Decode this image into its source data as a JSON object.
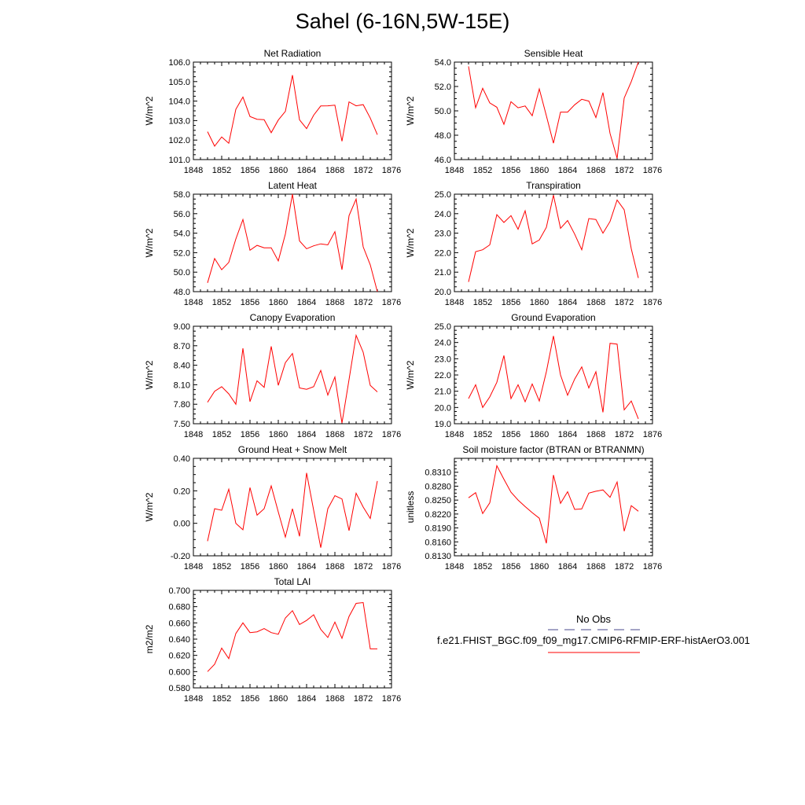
{
  "title": "Sahel (6-16N,5W-15E)",
  "series_color": "#ff0000",
  "legend": {
    "obs_label": "No Obs",
    "obs_color": "#4a4a8c",
    "model_label": "f.e21.FHIST_BGC.f09_f09_mg17.CMIP6-RFMIP-ERF-histAerO3.001",
    "model_color": "#ff0000"
  },
  "chart_data": [
    {
      "type": "line",
      "title": "Net Radiation",
      "ylabel": "W/m^2",
      "xlim": [
        1848,
        1876
      ],
      "x_ticks": [
        "1848",
        "1852",
        "1856",
        "1860",
        "1864",
        "1868",
        "1872",
        "1876"
      ],
      "ylim": [
        101.0,
        106.0
      ],
      "y_ticks": [
        "101.0",
        "102.0",
        "103.0",
        "104.0",
        "105.0",
        "106.0"
      ],
      "x": [
        1850,
        1851,
        1852,
        1853,
        1854,
        1855,
        1856,
        1857,
        1858,
        1859,
        1860,
        1861,
        1862,
        1863,
        1864,
        1865,
        1866,
        1867,
        1868,
        1869,
        1870,
        1871,
        1872,
        1873,
        1874
      ],
      "values": [
        102.43,
        101.69,
        102.16,
        101.84,
        103.58,
        104.21,
        103.21,
        103.07,
        103.05,
        102.38,
        103.03,
        103.47,
        105.33,
        103.04,
        102.59,
        103.28,
        103.75,
        103.76,
        103.79,
        101.94,
        103.96,
        103.76,
        103.82,
        103.13,
        102.28
      ]
    },
    {
      "type": "line",
      "title": "Sensible Heat",
      "ylabel": "W/m^2",
      "xlim": [
        1848,
        1876
      ],
      "x_ticks": [
        "1848",
        "1852",
        "1856",
        "1860",
        "1864",
        "1868",
        "1872",
        "1876"
      ],
      "ylim": [
        46.0,
        54.0
      ],
      "y_ticks": [
        "46.0",
        "48.0",
        "50.0",
        "52.0",
        "54.0"
      ],
      "x": [
        1850,
        1851,
        1852,
        1853,
        1854,
        1855,
        1856,
        1857,
        1858,
        1859,
        1860,
        1861,
        1862,
        1863,
        1864,
        1865,
        1866,
        1867,
        1868,
        1869,
        1870,
        1871,
        1872,
        1873,
        1874
      ],
      "values": [
        53.65,
        50.25,
        51.85,
        50.65,
        50.3,
        48.9,
        50.75,
        50.25,
        50.4,
        49.6,
        51.8,
        49.6,
        47.35,
        49.9,
        49.9,
        50.5,
        50.95,
        50.8,
        49.45,
        51.5,
        48.15,
        46.1,
        51.05,
        52.4,
        54.0
      ]
    },
    {
      "type": "line",
      "title": "Latent Heat",
      "ylabel": "W/m^2",
      "xlim": [
        1848,
        1876
      ],
      "x_ticks": [
        "1848",
        "1852",
        "1856",
        "1860",
        "1864",
        "1868",
        "1872",
        "1876"
      ],
      "ylim": [
        48.0,
        58.0
      ],
      "y_ticks": [
        "48.0",
        "50.0",
        "52.0",
        "54.0",
        "56.0",
        "58.0"
      ],
      "x": [
        1850,
        1851,
        1852,
        1853,
        1854,
        1855,
        1856,
        1857,
        1858,
        1859,
        1860,
        1861,
        1862,
        1863,
        1864,
        1865,
        1866,
        1867,
        1868,
        1869,
        1870,
        1871,
        1872,
        1873,
        1874
      ],
      "values": [
        48.9,
        51.4,
        50.25,
        51.0,
        53.4,
        55.4,
        52.25,
        52.75,
        52.5,
        52.5,
        51.15,
        53.9,
        58.0,
        53.2,
        52.4,
        52.7,
        52.9,
        52.8,
        54.15,
        50.25,
        55.8,
        57.5,
        52.6,
        50.75,
        48.0
      ]
    },
    {
      "type": "line",
      "title": "Transpiration",
      "ylabel": "W/m^2",
      "xlim": [
        1848,
        1876
      ],
      "x_ticks": [
        "1848",
        "1852",
        "1856",
        "1860",
        "1864",
        "1868",
        "1872",
        "1876"
      ],
      "ylim": [
        20.0,
        25.0
      ],
      "y_ticks": [
        "20.0",
        "21.0",
        "22.0",
        "23.0",
        "24.0",
        "25.0"
      ],
      "x": [
        1850,
        1851,
        1852,
        1853,
        1854,
        1855,
        1856,
        1857,
        1858,
        1859,
        1860,
        1861,
        1862,
        1863,
        1864,
        1865,
        1866,
        1867,
        1868,
        1869,
        1870,
        1871,
        1872,
        1873,
        1874
      ],
      "values": [
        20.5,
        22.05,
        22.15,
        22.4,
        23.95,
        23.55,
        23.9,
        23.2,
        24.15,
        22.45,
        22.65,
        23.3,
        24.95,
        23.25,
        23.65,
        22.95,
        22.15,
        23.75,
        23.7,
        23.0,
        23.6,
        24.7,
        24.2,
        22.2,
        20.7
      ]
    },
    {
      "type": "line",
      "title": "Canopy Evaporation",
      "ylabel": "W/m^2",
      "xlim": [
        1848,
        1876
      ],
      "x_ticks": [
        "1848",
        "1852",
        "1856",
        "1860",
        "1864",
        "1868",
        "1872",
        "1876"
      ],
      "ylim": [
        7.5,
        9.0
      ],
      "y_ticks": [
        "7.50",
        "7.80",
        "8.10",
        "8.40",
        "8.70",
        "9.00"
      ],
      "x": [
        1850,
        1851,
        1852,
        1853,
        1854,
        1855,
        1856,
        1857,
        1858,
        1859,
        1860,
        1861,
        1862,
        1863,
        1864,
        1865,
        1866,
        1867,
        1868,
        1869,
        1870,
        1871,
        1872,
        1873,
        1874
      ],
      "values": [
        7.83,
        8.0,
        8.07,
        7.96,
        7.8,
        8.66,
        7.84,
        8.16,
        8.06,
        8.69,
        8.09,
        8.44,
        8.58,
        8.05,
        8.03,
        8.07,
        8.32,
        7.94,
        8.22,
        7.51,
        8.18,
        8.86,
        8.6,
        8.09,
        7.99
      ]
    },
    {
      "type": "line",
      "title": "Ground Evaporation",
      "ylabel": "W/m^2",
      "xlim": [
        1848,
        1876
      ],
      "x_ticks": [
        "1848",
        "1852",
        "1856",
        "1860",
        "1864",
        "1868",
        "1872",
        "1876"
      ],
      "ylim": [
        19.0,
        25.0
      ],
      "y_ticks": [
        "19.0",
        "20.0",
        "21.0",
        "22.0",
        "23.0",
        "24.0",
        "25.0"
      ],
      "x": [
        1850,
        1851,
        1852,
        1853,
        1854,
        1855,
        1856,
        1857,
        1858,
        1859,
        1860,
        1861,
        1862,
        1863,
        1864,
        1865,
        1866,
        1867,
        1868,
        1869,
        1870,
        1871,
        1872,
        1873,
        1874
      ],
      "values": [
        20.55,
        21.4,
        20.0,
        20.65,
        21.55,
        23.2,
        20.55,
        21.4,
        20.35,
        21.45,
        20.4,
        22.2,
        24.4,
        22.0,
        20.75,
        21.75,
        22.5,
        21.2,
        22.2,
        19.7,
        23.95,
        23.9,
        19.85,
        20.4,
        19.3
      ]
    },
    {
      "type": "line",
      "title": "Ground Heat + Snow Melt",
      "ylabel": "W/m^2",
      "xlim": [
        1848,
        1876
      ],
      "x_ticks": [
        "1848",
        "1852",
        "1856",
        "1860",
        "1864",
        "1868",
        "1872",
        "1876"
      ],
      "ylim": [
        -0.2,
        0.4
      ],
      "y_ticks": [
        "-0.20",
        "0.00",
        "0.20",
        "0.40"
      ],
      "x": [
        1850,
        1851,
        1852,
        1853,
        1854,
        1855,
        1856,
        1857,
        1858,
        1859,
        1860,
        1861,
        1862,
        1863,
        1864,
        1865,
        1866,
        1867,
        1868,
        1869,
        1870,
        1871,
        1872,
        1873,
        1874
      ],
      "values": [
        -0.11,
        0.09,
        0.08,
        0.21,
        0.0,
        -0.04,
        0.22,
        0.05,
        0.09,
        0.23,
        0.07,
        -0.085,
        0.09,
        -0.08,
        0.31,
        0.08,
        -0.15,
        0.09,
        0.17,
        0.15,
        -0.045,
        0.185,
        0.1,
        0.03,
        0.26
      ]
    },
    {
      "type": "line",
      "title": "Soil moisture factor (BTRAN or BTRANMN)",
      "ylabel": "unitless",
      "xlim": [
        1848,
        1876
      ],
      "x_ticks": [
        "1848",
        "1852",
        "1856",
        "1860",
        "1864",
        "1868",
        "1872",
        "1876"
      ],
      "ylim": [
        0.813,
        0.834
      ],
      "y_ticks": [
        "0.8130",
        "0.8160",
        "0.8190",
        "0.8220",
        "0.8250",
        "0.8280",
        "0.8310"
      ],
      "x": [
        1850,
        1851,
        1852,
        1853,
        1854,
        1855,
        1856,
        1857,
        1858,
        1859,
        1860,
        1861,
        1862,
        1863,
        1864,
        1865,
        1866,
        1867,
        1868,
        1869,
        1870,
        1871,
        1872,
        1873,
        1874
      ],
      "values": [
        0.8255,
        0.8266,
        0.8221,
        0.8244,
        0.8324,
        0.8295,
        0.8267,
        0.825,
        0.8236,
        0.8223,
        0.8211,
        0.8157,
        0.8304,
        0.8243,
        0.8268,
        0.823,
        0.8231,
        0.8265,
        0.8269,
        0.8272,
        0.8256,
        0.8289,
        0.8183,
        0.8238,
        0.8226
      ]
    },
    {
      "type": "line",
      "title": "Total LAI",
      "ylabel": "m2/m2",
      "xlim": [
        1848,
        1876
      ],
      "x_ticks": [
        "1848",
        "1852",
        "1856",
        "1860",
        "1864",
        "1868",
        "1872",
        "1876"
      ],
      "ylim": [
        0.58,
        0.7
      ],
      "y_ticks": [
        "0.580",
        "0.600",
        "0.620",
        "0.640",
        "0.660",
        "0.680",
        "0.700"
      ],
      "x": [
        1850,
        1851,
        1852,
        1853,
        1854,
        1855,
        1856,
        1857,
        1858,
        1859,
        1860,
        1861,
        1862,
        1863,
        1864,
        1865,
        1866,
        1867,
        1868,
        1869,
        1870,
        1871,
        1872,
        1873,
        1874
      ],
      "values": [
        0.6,
        0.609,
        0.629,
        0.616,
        0.647,
        0.66,
        0.648,
        0.649,
        0.653,
        0.648,
        0.646,
        0.666,
        0.675,
        0.658,
        0.663,
        0.67,
        0.652,
        0.642,
        0.661,
        0.641,
        0.668,
        0.684,
        0.685,
        0.628,
        0.628
      ]
    }
  ]
}
